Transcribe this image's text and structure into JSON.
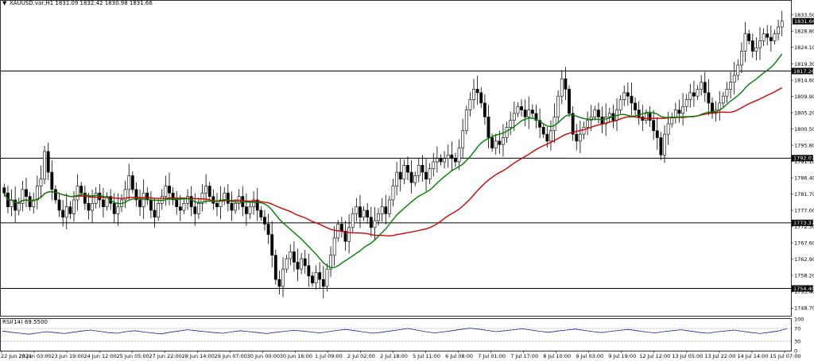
{
  "header": {
    "symbol_line": "XAUUSD.var,H1  1831.09 1832.42 1830.98 1831.66"
  },
  "rsi_panel": {
    "title": "RSI(14) 69.5500",
    "levels": [
      100,
      70,
      30,
      0
    ],
    "level_labels": [
      "100",
      "70",
      "30",
      "0"
    ],
    "series": [
      62,
      58,
      55,
      52,
      56,
      60,
      57,
      54,
      58,
      62,
      65,
      61,
      57,
      55,
      60,
      63,
      59,
      56,
      53,
      58,
      62,
      66,
      63,
      60,
      57,
      55,
      59,
      63,
      60,
      57,
      54,
      58,
      61,
      64,
      62,
      59,
      56,
      60,
      64,
      67,
      63,
      59,
      55,
      58,
      62,
      66,
      70,
      65,
      60,
      56,
      59,
      63,
      67,
      71,
      68,
      64,
      60,
      63,
      66,
      69,
      65,
      61,
      58,
      62,
      65,
      68,
      64,
      60,
      57,
      61,
      64,
      67,
      63,
      59,
      56,
      60,
      63,
      66,
      62,
      58,
      55,
      59,
      62,
      65,
      61,
      57,
      54,
      58,
      62,
      69.55
    ]
  },
  "chart_data": {
    "type": "candlestick",
    "symbol": "XAUUSD.var",
    "timeframe": "H1",
    "last": {
      "open": 1831.09,
      "high": 1832.42,
      "low": 1830.98,
      "close": 1831.66
    },
    "ylim": [
      1746.5,
      1835.5
    ],
    "y_ticks": [
      1833.5,
      1828.8,
      1824.1,
      1819.3,
      1814.6,
      1809.9,
      1805.2,
      1800.5,
      1795.8,
      1791.1,
      1786.4,
      1781.7,
      1777.0,
      1772.3,
      1767.6,
      1762.9,
      1758.2,
      1753.4,
      1748.7
    ],
    "y_tick_labels": [
      "1833.50",
      "1828.80",
      "1824.10",
      "1819.30",
      "1814.60",
      "1809.90",
      "1805.20",
      "1800.50",
      "1795.80",
      "1791.10",
      "1786.40",
      "1781.70",
      "1777.00",
      "1772.30",
      "1767.60",
      "1762.90",
      "1758.20",
      "1753.40",
      "1748.70"
    ],
    "x_tick_labels": [
      "22 Jun 2021",
      "23 Jun 03:00",
      "23 Jun 19:00",
      "24 Jun 12:00",
      "25 Jun 05:00",
      "27 Jun 22:00",
      "28 Jun 14:00",
      "29 Jun 07:00",
      "30 Jun 00:00",
      "30 Jun 16:00",
      "1 Jul 09:00",
      "2 Jul 02:00",
      "2 Jul 18:00",
      "5 Jul 11:00",
      "6 Jul 08:00",
      "7 Jul 01:00",
      "7 Jul 17:00",
      "8 Jul 10:00",
      "9 Jul 03:00",
      "9 Jul 19:00",
      "12 Jul 12:00",
      "13 Jul 05:00",
      "13 Jul 22:00",
      "14 Jul 14:00",
      "15 Jul 07:00"
    ],
    "horizontal_levels": [
      {
        "value": 1817.26,
        "label": "1817.26"
      },
      {
        "value": 1792.07,
        "label": "1792.07"
      },
      {
        "value": 1773.37,
        "label": "1773.37"
      },
      {
        "value": 1754.4,
        "label": "1754.40"
      }
    ],
    "last_price_label": "1831.66",
    "close_series": [
      1782,
      1778,
      1780,
      1777,
      1779,
      1783,
      1781,
      1778,
      1780,
      1784,
      1786,
      1794,
      1788,
      1783,
      1780,
      1777,
      1775,
      1778,
      1776,
      1780,
      1784,
      1782,
      1779,
      1777,
      1779,
      1782,
      1780,
      1778,
      1781,
      1779,
      1776,
      1778,
      1780,
      1783,
      1787,
      1783,
      1780,
      1778,
      1782,
      1780,
      1777,
      1775,
      1779,
      1781,
      1784,
      1782,
      1780,
      1778,
      1777,
      1779,
      1781,
      1778,
      1776,
      1779,
      1782,
      1784,
      1781,
      1779,
      1778,
      1780,
      1782,
      1779,
      1777,
      1779,
      1781,
      1778,
      1776,
      1778,
      1780,
      1777,
      1775,
      1773,
      1770,
      1764,
      1757,
      1755,
      1760,
      1763,
      1765,
      1762,
      1760,
      1763,
      1761,
      1758,
      1756,
      1759,
      1757,
      1755,
      1760,
      1764,
      1769,
      1773,
      1771,
      1768,
      1772,
      1776,
      1778,
      1775,
      1777,
      1775,
      1772,
      1774,
      1776,
      1778,
      1776,
      1780,
      1784,
      1788,
      1786,
      1790,
      1788,
      1785,
      1787,
      1790,
      1788,
      1786,
      1789,
      1791,
      1792,
      1791,
      1792,
      1793,
      1792,
      1791,
      1795,
      1800,
      1806,
      1809,
      1812,
      1811,
      1808,
      1804,
      1798,
      1795,
      1797,
      1796,
      1798,
      1801,
      1803,
      1805,
      1807,
      1806,
      1804,
      1806,
      1805,
      1803,
      1801,
      1799,
      1797,
      1800,
      1804,
      1810,
      1815,
      1812,
      1805,
      1799,
      1797,
      1799,
      1801,
      1803,
      1804,
      1806,
      1804,
      1802,
      1804,
      1805,
      1803,
      1806,
      1809,
      1811,
      1810,
      1808,
      1806,
      1804,
      1803,
      1805,
      1803,
      1800,
      1798,
      1793,
      1799,
      1802,
      1804,
      1806,
      1805,
      1807,
      1809,
      1811,
      1810,
      1812,
      1814,
      1811,
      1808,
      1805,
      1806,
      1808,
      1810,
      1812,
      1814,
      1816,
      1819,
      1823,
      1828,
      1826,
      1823,
      1824,
      1826,
      1828,
      1827,
      1826,
      1828,
      1830,
      1831.66
    ],
    "series": [
      {
        "name": "",
        "color": "#d40000",
        "role": "slow moving average"
      },
      {
        "name": "",
        "color": "#008000",
        "role": "fast moving average"
      }
    ],
    "colors": {
      "candle": "#000000",
      "level_line": "#000000"
    }
  }
}
